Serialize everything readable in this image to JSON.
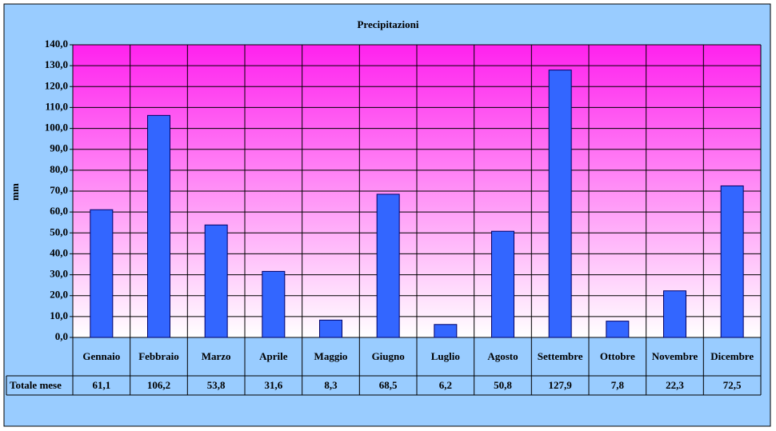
{
  "chart_data": {
    "type": "bar",
    "title": "Precipitazioni",
    "y_label": "mm",
    "categories": [
      "Gennaio",
      "Febbraio",
      "Marzo",
      "Aprile",
      "Maggio",
      "Giugno",
      "Luglio",
      "Agosto",
      "Settembre",
      "Ottobre",
      "Novembre",
      "Dicembre"
    ],
    "series": [
      {
        "name": "Totale mese",
        "color": "#3366ff",
        "values": [
          61.1,
          106.2,
          53.8,
          31.6,
          8.3,
          68.5,
          6.2,
          50.8,
          127.9,
          7.8,
          22.3,
          72.5
        ],
        "value_labels": [
          "61,1",
          "106,2",
          "53,8",
          "31,6",
          "8,3",
          "68,5",
          "6,2",
          "50,8",
          "127,9",
          "7,8",
          "22,3",
          "72,5"
        ]
      }
    ],
    "ylim": [
      0,
      140
    ],
    "yticks": [
      {
        "value": 0,
        "label": "0,0"
      },
      {
        "value": 10,
        "label": "10,0"
      },
      {
        "value": 20,
        "label": "20,0"
      },
      {
        "value": 30,
        "label": "30,0"
      },
      {
        "value": 40,
        "label": "40,0"
      },
      {
        "value": 50,
        "label": "50,0"
      },
      {
        "value": 60,
        "label": "60,0"
      },
      {
        "value": 70,
        "label": "70,0"
      },
      {
        "value": 80,
        "label": "80,0"
      },
      {
        "value": 90,
        "label": "90,0"
      },
      {
        "value": 100,
        "label": "100,0"
      },
      {
        "value": 110,
        "label": "110,0"
      },
      {
        "value": 120,
        "label": "120,0"
      },
      {
        "value": 130,
        "label": "130,0"
      },
      {
        "value": 140,
        "label": "140,0"
      }
    ],
    "grid": true
  }
}
